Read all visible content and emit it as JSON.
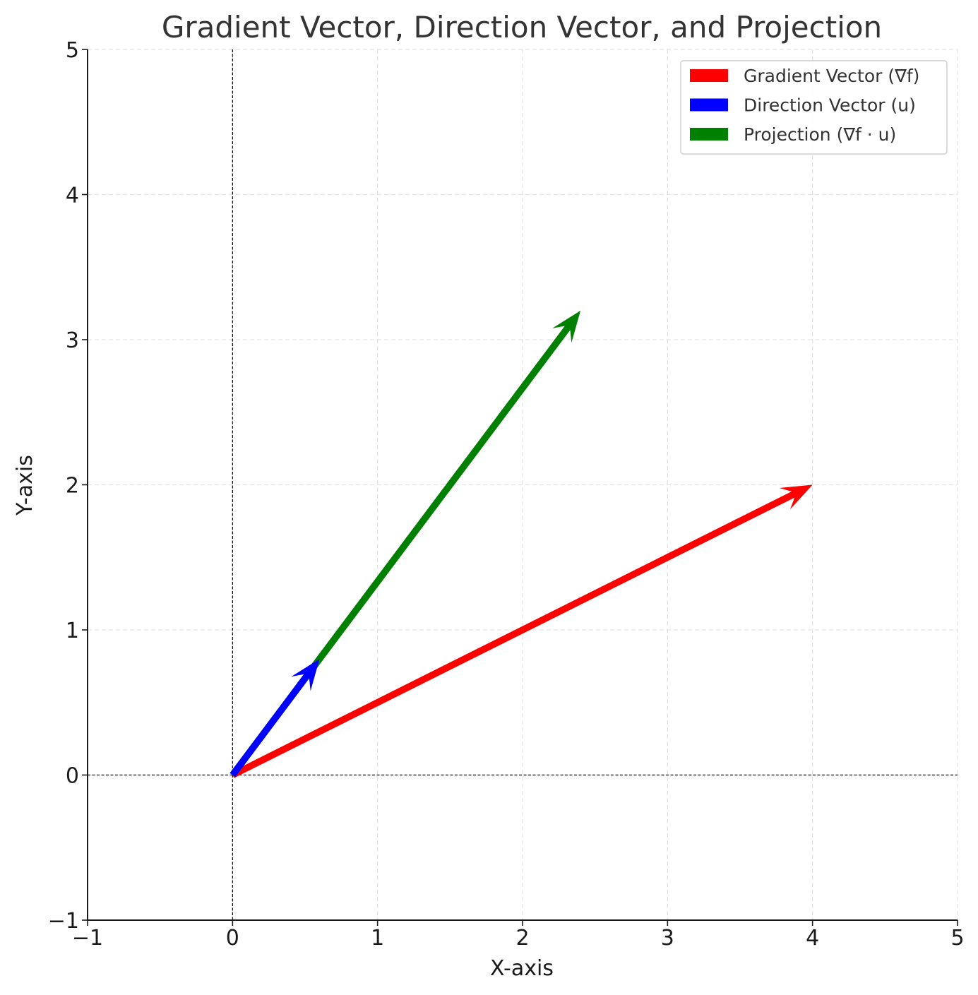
{
  "chart_data": {
    "type": "quiver",
    "title": "Gradient Vector, Direction Vector, and Projection",
    "xlabel": "X-axis",
    "ylabel": "Y-axis",
    "xlim": [
      -1,
      5
    ],
    "ylim": [
      -1,
      5
    ],
    "xticks": [
      -1,
      0,
      1,
      2,
      3,
      4,
      5
    ],
    "yticks": [
      -1,
      0,
      1,
      2,
      3,
      4,
      5
    ],
    "xtick_labels": [
      "−1",
      "0",
      "1",
      "2",
      "3",
      "4",
      "5"
    ],
    "ytick_labels": [
      "−1",
      "0",
      "1",
      "2",
      "3",
      "4",
      "5"
    ],
    "grid": true,
    "reference_lines": [
      "x = 0",
      "y = 0"
    ],
    "legend_position": "top-right",
    "series": [
      {
        "name": "Gradient Vector (∇f)",
        "color": "#ff0000",
        "origin": [
          0,
          0
        ],
        "vector": [
          4,
          2
        ]
      },
      {
        "name": "Direction Vector (u)",
        "color": "#0000ff",
        "origin": [
          0,
          0
        ],
        "vector": [
          0.6,
          0.8
        ]
      },
      {
        "name": "Projection (∇f · u)",
        "color": "#008000",
        "origin": [
          0,
          0
        ],
        "vector": [
          2.4,
          3.2
        ]
      }
    ]
  }
}
